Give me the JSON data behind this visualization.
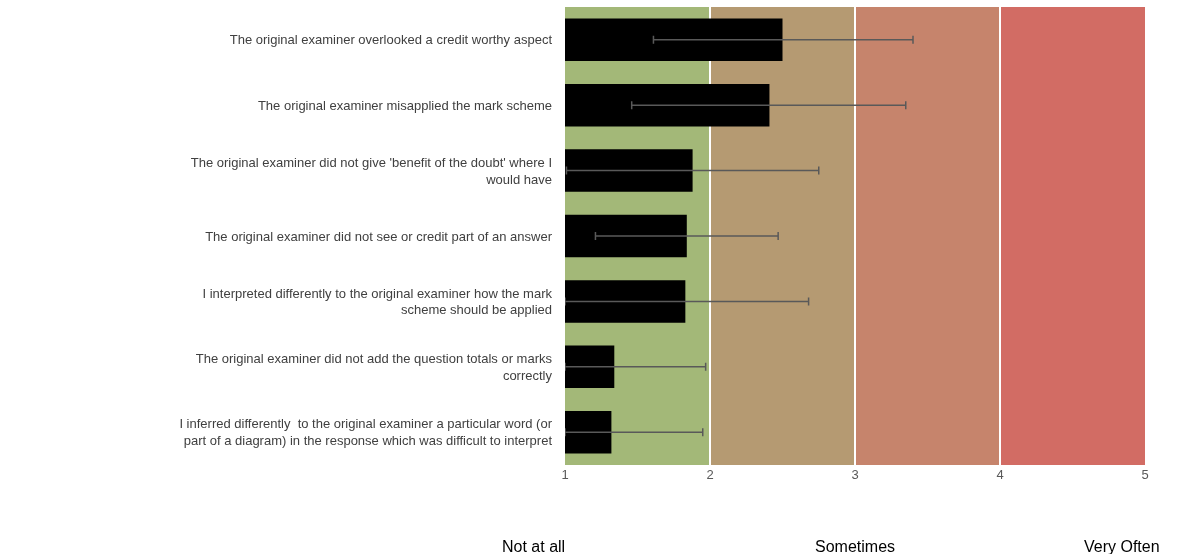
{
  "chart_data": {
    "type": "bar",
    "orientation": "horizontal",
    "categories": [
      "The original examiner overlooked a credit worthy aspect",
      "The original examiner misapplied the mark scheme",
      "The original examiner did not give 'benefit of the doubt' where I\nwould have",
      "The original examiner did not see or credit part of an answer",
      "I interpreted differently to the original examiner how the mark\nscheme should be applied",
      "The original examiner did not add the question totals or marks\ncorrectly",
      "I inferred differently  to the original examiner a particular word (or\npart of a diagram) in the response which was difficult to interpret"
    ],
    "values": [
      2.5,
      2.41,
      1.88,
      1.84,
      1.83,
      1.34,
      1.32
    ],
    "errors": [
      [
        1.61,
        3.4
      ],
      [
        1.46,
        3.35
      ],
      [
        1.01,
        2.75
      ],
      [
        1.21,
        2.47
      ],
      [
        1.0,
        2.68
      ],
      [
        1.0,
        1.97
      ],
      [
        1.0,
        1.95
      ]
    ],
    "color": "#000000",
    "xlim": [
      1,
      5
    ],
    "xticks": [
      1,
      2,
      3,
      4,
      5
    ],
    "grid": "x",
    "bands": [
      {
        "axis": "x",
        "from": 1,
        "to": 2,
        "color": "#a3b878"
      },
      {
        "axis": "x",
        "from": 2,
        "to": 3,
        "color": "#b59a72"
      },
      {
        "axis": "x",
        "from": 3,
        "to": 4,
        "color": "#c6846c"
      },
      {
        "axis": "x",
        "from": 4,
        "to": 5,
        "color": "#d26c64"
      }
    ],
    "annotations": [
      "Not at all",
      "Sometimes",
      "Very Often"
    ]
  }
}
